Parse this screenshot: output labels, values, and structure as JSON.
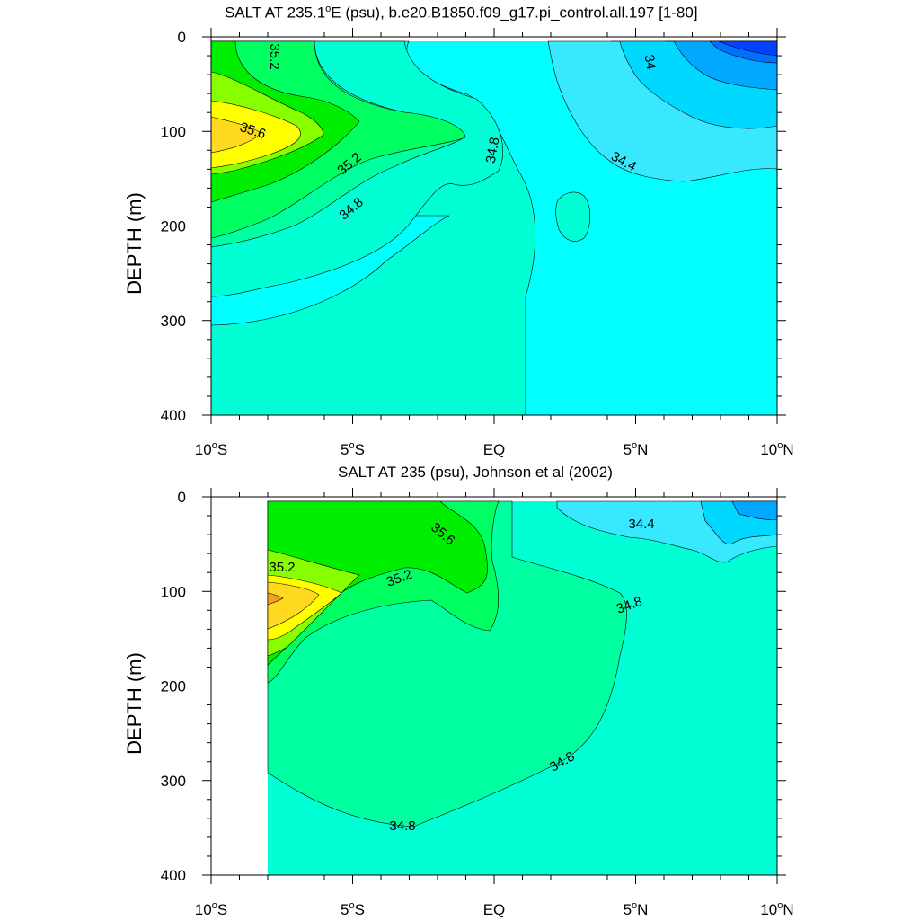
{
  "chart_data": [
    {
      "type": "heatmap",
      "title": "SALT AT 235.1°E (psu), b.e20.B1850.f09_g17.pi_control.all.197 [1-80]",
      "title_parts": {
        "pre": "SALT AT 235.1",
        "sup": "o",
        "post": "E (psu), b.e20.B1850.f09_g17.pi_control.all.197 [1-80]"
      },
      "ylabel": "DEPTH (m)",
      "xlim": [
        -10,
        10
      ],
      "ylim": [
        400,
        0
      ],
      "xticks": [
        {
          "v": -10,
          "pre": "10",
          "sup": "o",
          "post": "S"
        },
        {
          "v": -5,
          "pre": "5",
          "sup": "o",
          "post": "S"
        },
        {
          "v": 0,
          "pre": "EQ",
          "sup": "",
          "post": ""
        },
        {
          "v": 5,
          "pre": "5",
          "sup": "o",
          "post": "N"
        },
        {
          "v": 10,
          "pre": "10",
          "sup": "o",
          "post": "N"
        }
      ],
      "yticks": [
        "0",
        "100",
        "200",
        "300",
        "400"
      ],
      "contour_labels": [
        "35.2",
        "35.6",
        "35.2",
        "34.8",
        "34.8",
        "34",
        "34.4"
      ],
      "colors": [
        "#0044ff",
        "#0070ff",
        "#00a8ff",
        "#00d8ff",
        "#38e8ff",
        "#00ffff",
        "#00ffd4",
        "#00ffa0",
        "#00ff60",
        "#00ee00",
        "#88ff00",
        "#ffff00",
        "#ffd820"
      ]
    },
    {
      "type": "heatmap",
      "title": "SALT AT 235 (psu), Johnson et al (2002)",
      "ylabel": "DEPTH (m)",
      "xlim": [
        -10,
        10
      ],
      "ylim": [
        400,
        0
      ],
      "xticks": [
        {
          "v": -10,
          "pre": "10",
          "sup": "o",
          "post": "S"
        },
        {
          "v": -5,
          "pre": "5",
          "sup": "o",
          "post": "S"
        },
        {
          "v": 0,
          "pre": "EQ",
          "sup": "",
          "post": ""
        },
        {
          "v": 5,
          "pre": "5",
          "sup": "o",
          "post": "N"
        },
        {
          "v": 10,
          "pre": "10",
          "sup": "o",
          "post": "N"
        }
      ],
      "yticks": [
        "0",
        "100",
        "200",
        "300",
        "400"
      ],
      "contour_labels": [
        "35.2",
        "35.6",
        "35.2",
        "34.4",
        "34.8",
        "34.8",
        "34.8"
      ],
      "data_start_x": -8
    }
  ]
}
